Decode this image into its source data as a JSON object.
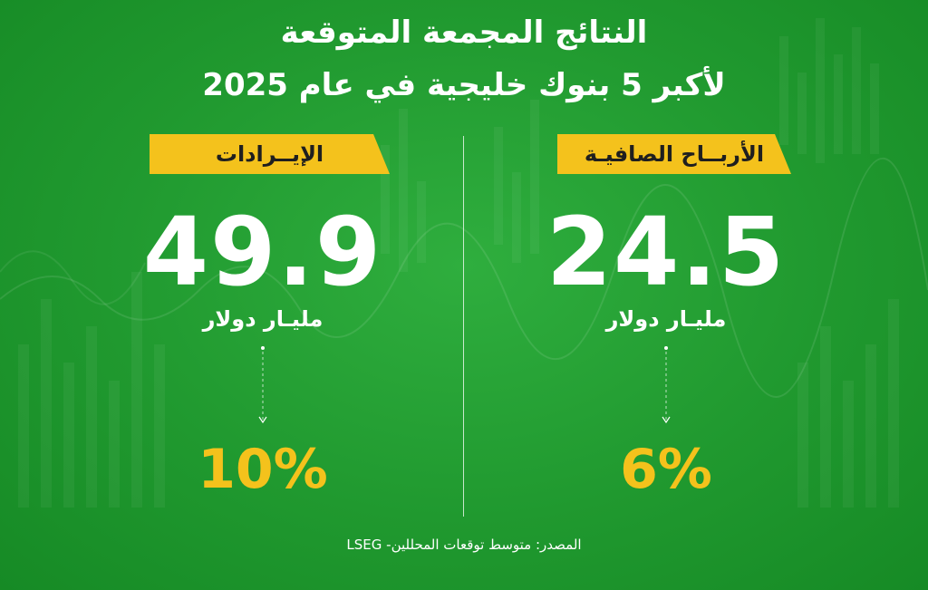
{
  "title": {
    "line1": "النتائج المجمعة المتوقعة",
    "line2": "لأكبر 5 بنوك خليجية في عام 2025"
  },
  "revenue": {
    "label": "الإيــرادات",
    "value": "49.9",
    "unit": "مليـار دولار",
    "change": "10%"
  },
  "net_profit": {
    "label": "الأربــاح الصافيـة",
    "value": "24.5",
    "unit": "مليـار دولار",
    "change": "6%"
  },
  "source": "المصدر: متوسط توقعات المحللين- LSEG",
  "colors": {
    "background": "#20992f",
    "accent": "#f4c21c",
    "text": "#ffffff"
  },
  "icons": {
    "arrow": "down-arrow-icon"
  }
}
